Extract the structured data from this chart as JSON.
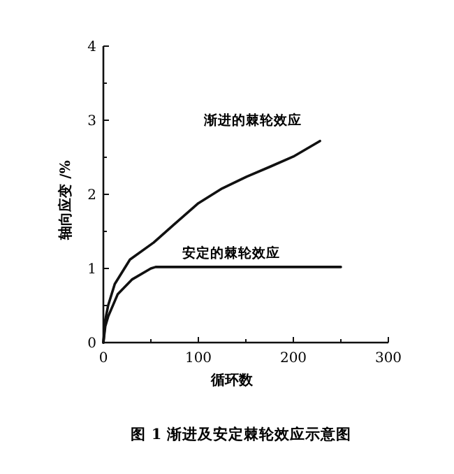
{
  "chart_data": {
    "type": "line",
    "xlabel": "循环数",
    "ylabel": "轴向应变 /%",
    "annotations": [
      "图 1  渐进及安定棘轮效应示意图"
    ],
    "xlim": [
      0,
      300
    ],
    "ylim": [
      0,
      4
    ],
    "xticks": [
      0,
      {
        "value": 50,
        "label": null
      },
      100,
      {
        "value": 150,
        "label": null
      },
      200,
      {
        "value": 250,
        "label": null
      },
      300
    ],
    "yticks": [
      0,
      {
        "value": 0.5,
        "label": null
      },
      1,
      {
        "value": 1.5,
        "label": null
      },
      2,
      {
        "value": 2.5,
        "label": null
      },
      3,
      {
        "value": 3.5,
        "label": null
      },
      4
    ],
    "marker": "none",
    "line_style": "solid",
    "series": [
      {
        "name": "渐进的棘轮效应",
        "color": "#111111",
        "x": [
          0,
          2,
          5,
          12,
          28,
          53,
          75,
          100,
          125,
          151,
          175,
          200,
          228
        ],
        "values": [
          0,
          0.3,
          0.5,
          0.79,
          1.12,
          1.35,
          1.6,
          1.88,
          2.08,
          2.24,
          2.37,
          2.51,
          2.72
        ]
      },
      {
        "name": "安定的棘轮效应",
        "color": "#111111",
        "x": [
          0,
          2,
          5,
          15,
          30,
          50,
          55,
          250
        ],
        "values": [
          0,
          0.22,
          0.35,
          0.65,
          0.85,
          1.0,
          1.02,
          1.02
        ]
      }
    ]
  }
}
